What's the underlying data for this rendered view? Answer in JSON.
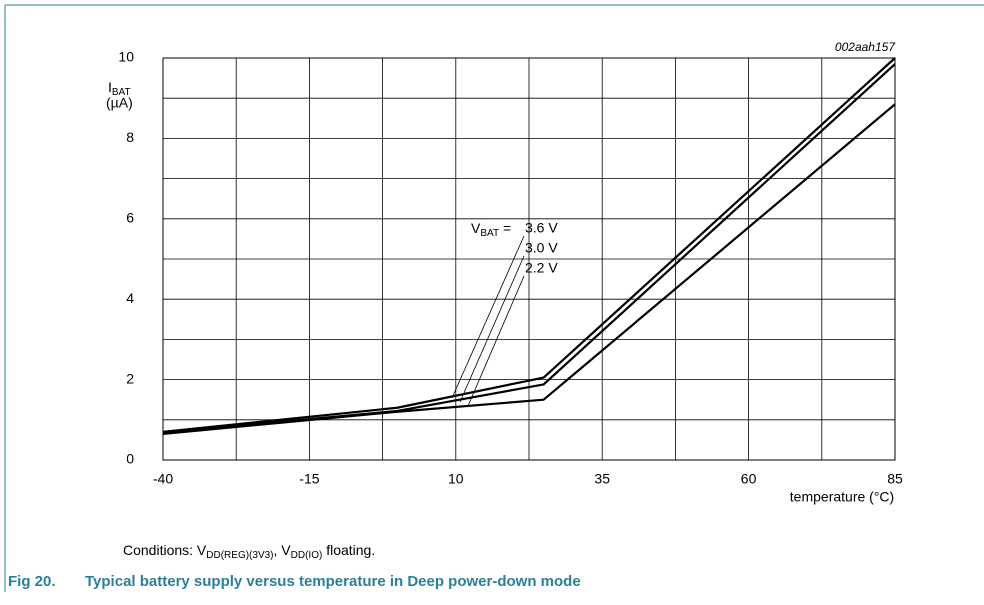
{
  "chart_data": {
    "type": "line",
    "figure_id": "002aah157",
    "ylabel": {
      "main": "I",
      "sub": "BAT",
      "unit": "(µA)"
    },
    "xlabel": "temperature (°C)",
    "x": [
      -40,
      0,
      25,
      85
    ],
    "series": [
      {
        "name": "3.6 V",
        "color": "#000000",
        "values": [
          0.7,
          1.3,
          2.05,
          10
        ]
      },
      {
        "name": "3.0 V",
        "color": "#000000",
        "values": [
          0.68,
          1.22,
          1.88,
          9.85
        ]
      },
      {
        "name": "2.2 V",
        "color": "#000000",
        "values": [
          0.65,
          1.2,
          1.5,
          8.85
        ]
      }
    ],
    "annotation": {
      "main": "V",
      "sub": "BAT",
      "rest": " ="
    },
    "xlim": [
      -40,
      85
    ],
    "ylim": [
      0,
      10
    ],
    "xticks": [
      -40,
      -15,
      10,
      35,
      60,
      85
    ],
    "yticks": [
      0,
      2,
      4,
      6,
      8,
      10
    ],
    "xminorticks": [
      -27.5,
      -2.5,
      22.5,
      47.5,
      72.5
    ],
    "yminorticks": [
      1,
      3,
      5,
      7,
      9
    ],
    "grid": true,
    "conditions": [
      "Conditions: V",
      "DD(REG)(3V3)",
      ", V",
      "DD(IO)",
      " floating."
    ],
    "caption": {
      "number": "Fig 20.",
      "text": "Typical battery supply versus temperature in Deep power-down mode"
    }
  }
}
